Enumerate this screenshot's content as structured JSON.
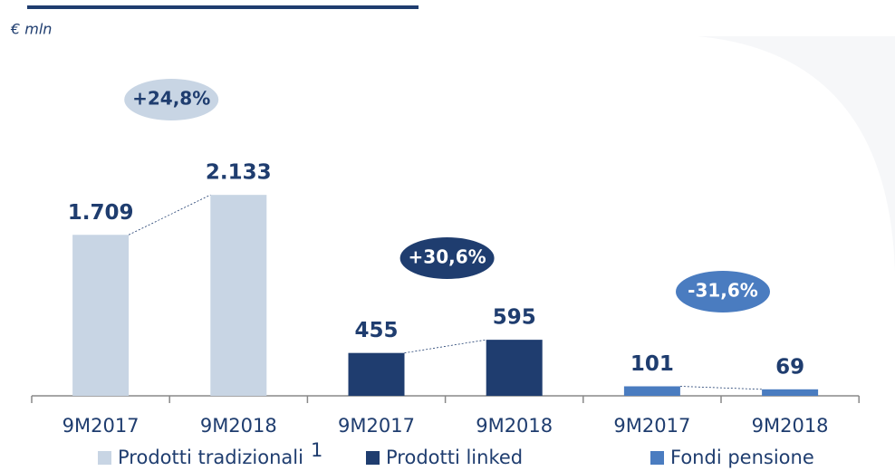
{
  "chart_data": {
    "type": "bar",
    "subtitle": "€ mln",
    "series": [
      {
        "name": "Prodotti tradizionali",
        "note": "1",
        "color": "#c8d5e4",
        "change": "+24,8%",
        "change_fill": "#c8d5e4",
        "change_text": "#1f3d6f",
        "categories": [
          "9M2017",
          "9M2018"
        ],
        "values": [
          1709,
          2133
        ],
        "value_labels": [
          "1.709",
          "2.133"
        ]
      },
      {
        "name": "Prodotti linked",
        "color": "#1f3d6f",
        "change": "+30,6%",
        "change_fill": "#1f3d6f",
        "change_text": "#ffffff",
        "categories": [
          "9M2017",
          "9M2018"
        ],
        "values": [
          455,
          595
        ]
      },
      {
        "name": "Fondi pensione",
        "color": "#4a7cc0",
        "change": "-31,6%",
        "change_fill": "#4a7cc0",
        "change_text": "#ffffff",
        "categories": [
          "9M2017",
          "9M2018"
        ],
        "values": [
          101,
          69
        ]
      }
    ]
  }
}
